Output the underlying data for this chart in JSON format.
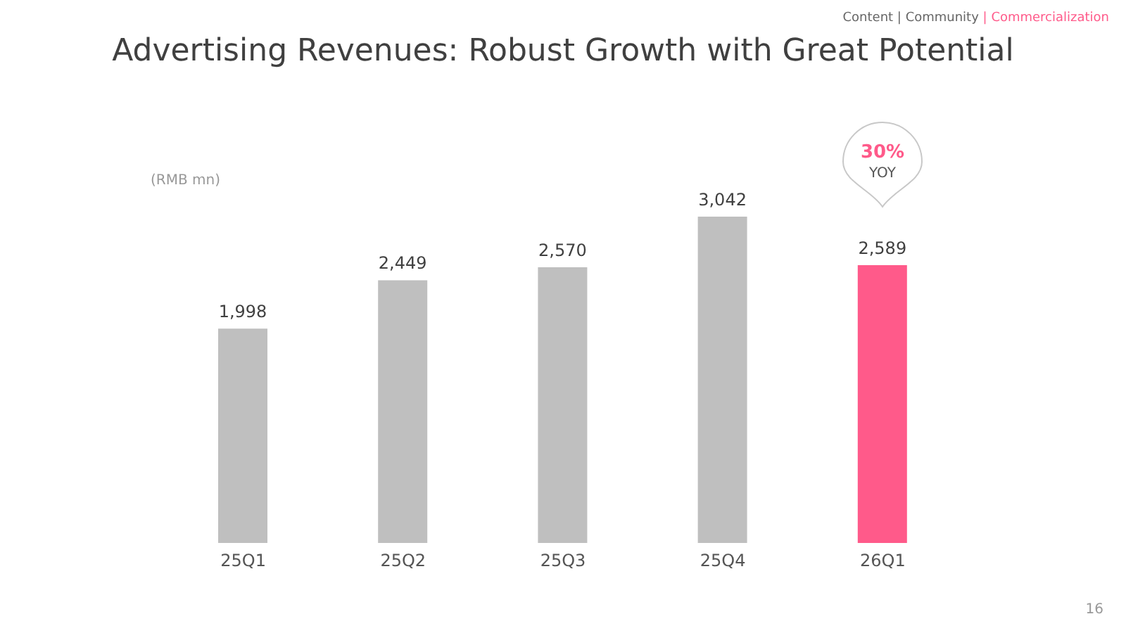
{
  "chart_data": {
    "type": "bar",
    "title": "Advertising Revenues: Robust Growth with Great Potential",
    "ylabel": "(RMB mn)",
    "categories": [
      "25Q1",
      "25Q2",
      "25Q3",
      "25Q4",
      "26Q1"
    ],
    "values": [
      1998,
      2449,
      2570,
      3042,
      2589
    ],
    "colors": [
      "#bfbfbf",
      "#bfbfbf",
      "#bfbfbf",
      "#bfbfbf",
      "#ff5a8a"
    ],
    "value_labels": [
      "1,998",
      "2,449",
      "2,570",
      "3,042",
      "2,589"
    ],
    "annotations": [
      "Content | Community | Commercialization",
      "30% YOY",
      "16"
    ]
  }
}
